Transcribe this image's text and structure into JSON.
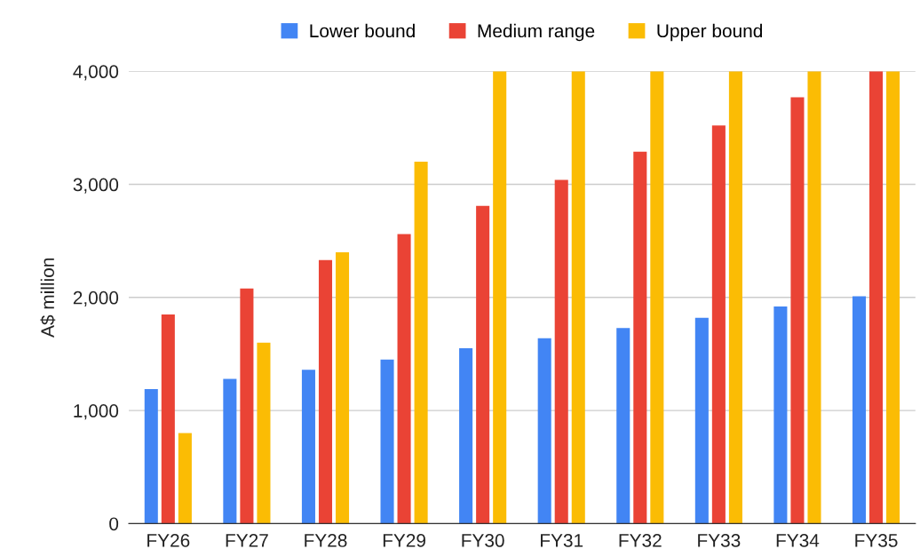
{
  "chart_data": {
    "type": "bar",
    "ylabel": "A$ million",
    "categories": [
      "FY26",
      "FY27",
      "FY28",
      "FY29",
      "FY30",
      "FY31",
      "FY32",
      "FY33",
      "FY34",
      "FY35"
    ],
    "series": [
      {
        "name": "Lower bound",
        "color": "#4285f4",
        "values": [
          1190,
          1280,
          1360,
          1450,
          1550,
          1640,
          1730,
          1820,
          1920,
          2010
        ]
      },
      {
        "name": "Medium range",
        "color": "#ea4335",
        "values": [
          1850,
          2080,
          2330,
          2560,
          2810,
          3040,
          3290,
          3520,
          3770,
          4000
        ]
      },
      {
        "name": "Upper bound",
        "color": "#fbbc04",
        "values": [
          800,
          1600,
          2400,
          3200,
          4000,
          4000,
          4000,
          4000,
          4000,
          4000
        ]
      }
    ],
    "ylim": [
      0,
      4000
    ],
    "yticks": [
      {
        "value": 0,
        "label": "0"
      },
      {
        "value": 1000,
        "label": "1,000"
      },
      {
        "value": 2000,
        "label": "2,000"
      },
      {
        "value": 3000,
        "label": "3,000"
      },
      {
        "value": 4000,
        "label": "4,000"
      }
    ],
    "grid": "y",
    "legend": "top"
  }
}
